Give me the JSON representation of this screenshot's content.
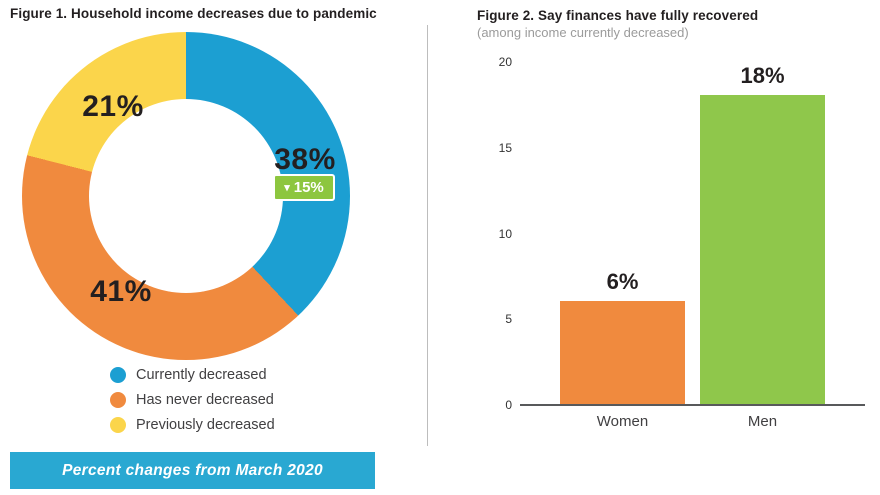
{
  "figure1": {
    "title": "Figure 1. Household income decreases due to pandemic",
    "chart_data": {
      "type": "pie",
      "donut": true,
      "start_angle_deg": 0,
      "direction": "clockwise",
      "slices": [
        {
          "label": "Currently decreased",
          "value": 38,
          "display": "38%",
          "color": "#1c9fd2"
        },
        {
          "label": "Has never decreased",
          "value": 41,
          "display": "41%",
          "color": "#f08a3e"
        },
        {
          "label": "Previously decreased",
          "value": 21,
          "display": "21%",
          "color": "#fbd54b"
        }
      ]
    },
    "badge": {
      "arrow": "▾",
      "text": "15%",
      "color": "#8dc63f"
    },
    "footer_banner": {
      "text": "Percent changes from March 2020",
      "color": "#29a8d2"
    }
  },
  "figure2": {
    "title": "Figure 2. Say finances have fully recovered",
    "subtitle": "(among income currently decreased)",
    "chart_data": {
      "type": "bar",
      "categories": [
        "Women",
        "Men"
      ],
      "values": [
        6,
        18
      ],
      "bar_labels": [
        "6%",
        "18%"
      ],
      "bar_colors": [
        "#f08a3e",
        "#8fc74b"
      ],
      "yticks": [
        20,
        15,
        10,
        5,
        0
      ],
      "ylim": [
        0,
        20
      ],
      "grid": false,
      "legend": "none"
    }
  }
}
